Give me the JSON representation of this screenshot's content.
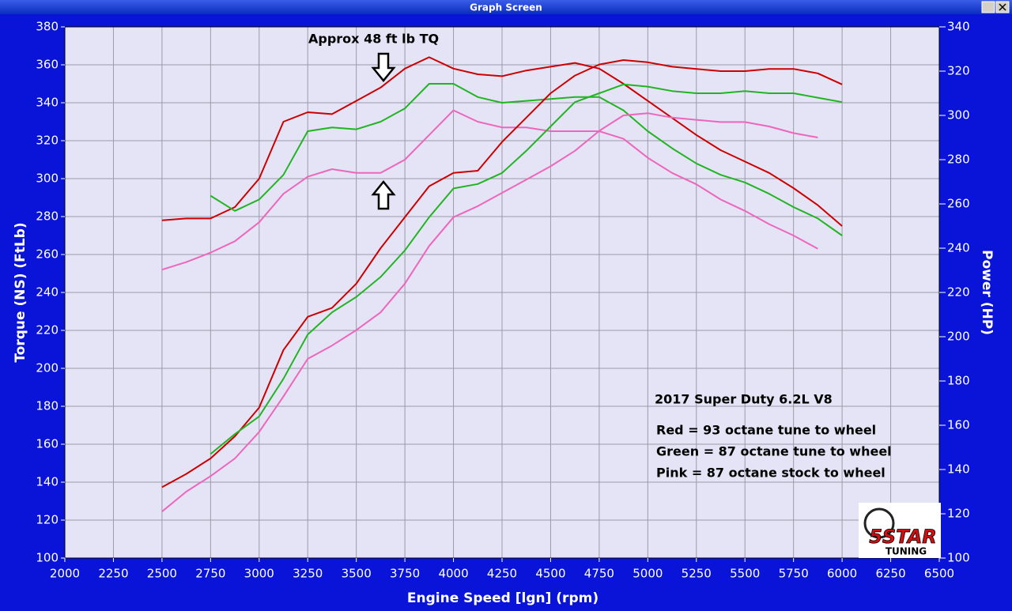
{
  "window_title": "Graph Screen",
  "logo": {
    "brand": "5STAR",
    "tagline": "TUNING"
  },
  "chart_data": {
    "type": "line",
    "xlabel": "Engine Speed [lgn] (rpm)",
    "ylabel": "Torque (NS) (FtLb)",
    "y2label": "Power (HP)",
    "annotations": [
      "Approx 48 ft lb TQ",
      "2017 Super Duty 6.2L V8",
      "Red = 93 octane tune to wheel",
      "Green = 87 octane tune to wheel",
      "Pink = 87 octane stock to wheel"
    ],
    "x": [
      2500,
      2625,
      2750,
      2875,
      3000,
      3125,
      3250,
      3375,
      3500,
      3625,
      3750,
      3875,
      4000,
      4125,
      4250,
      4375,
      4500,
      4625,
      4750,
      4875,
      5000,
      5125,
      5250,
      5375,
      5500,
      5625,
      5750,
      5875,
      6000
    ],
    "xlim": [
      2000,
      6500
    ],
    "xticks": [
      2000,
      2250,
      2500,
      2750,
      3000,
      3250,
      3500,
      3750,
      4000,
      4250,
      4500,
      4750,
      5000,
      5250,
      5500,
      5750,
      6000,
      6250,
      6500
    ],
    "ylim": [
      100,
      380
    ],
    "yticks": [
      100,
      120,
      140,
      160,
      180,
      200,
      220,
      240,
      260,
      280,
      300,
      320,
      340,
      360,
      380
    ],
    "y2lim": [
      100,
      340
    ],
    "y2ticks": [
      100,
      120,
      140,
      160,
      180,
      200,
      220,
      240,
      260,
      280,
      300,
      320,
      340
    ],
    "grid": true,
    "series": [
      {
        "color": "#cc0000",
        "values": [
          278,
          279,
          279,
          285,
          300,
          330,
          335,
          334,
          341,
          348,
          358,
          364,
          358,
          355,
          354,
          357,
          359,
          361,
          358,
          350,
          341,
          332,
          323,
          315,
          309,
          303,
          295,
          286,
          275
        ]
      },
      {
        "color": "#22b422",
        "values": [
          null,
          null,
          291,
          283,
          289,
          302,
          325,
          327,
          326,
          330,
          337,
          350,
          350,
          343,
          340,
          341,
          342,
          343,
          343,
          336,
          325,
          316,
          308,
          302,
          298,
          292,
          285,
          279,
          270
        ]
      },
      {
        "color": "#ee66bb",
        "values": [
          252,
          256,
          261,
          267,
          277,
          292,
          301,
          305,
          303,
          303,
          310,
          323,
          336,
          330,
          327,
          327,
          325,
          325,
          325,
          321,
          311,
          303,
          297,
          289,
          283,
          276,
          270,
          263,
          null
        ]
      },
      {
        "color": "#cc0000",
        "axis": "y2",
        "values": [
          132,
          138,
          145,
          155,
          168,
          194,
          209,
          213,
          224,
          240,
          254,
          268,
          274,
          275,
          288,
          299,
          310,
          318,
          323,
          325,
          324,
          322,
          321,
          320,
          320,
          321,
          321,
          319,
          314
        ]
      },
      {
        "color": "#22b422",
        "axis": "y2",
        "values": [
          null,
          null,
          147,
          156,
          164,
          181,
          201,
          211,
          218,
          227,
          239,
          254,
          267,
          269,
          274,
          284,
          295,
          306,
          310,
          314,
          313,
          311,
          310,
          310,
          311,
          310,
          310,
          308,
          306
        ]
      },
      {
        "color": "#ee66bb",
        "axis": "y2",
        "values": [
          121,
          130,
          137,
          145,
          157,
          173,
          190,
          196,
          203,
          211,
          224,
          241,
          254,
          259,
          265,
          271,
          277,
          284,
          293,
          300,
          301,
          299,
          298,
          297,
          297,
          295,
          292,
          290,
          null
        ]
      }
    ]
  }
}
